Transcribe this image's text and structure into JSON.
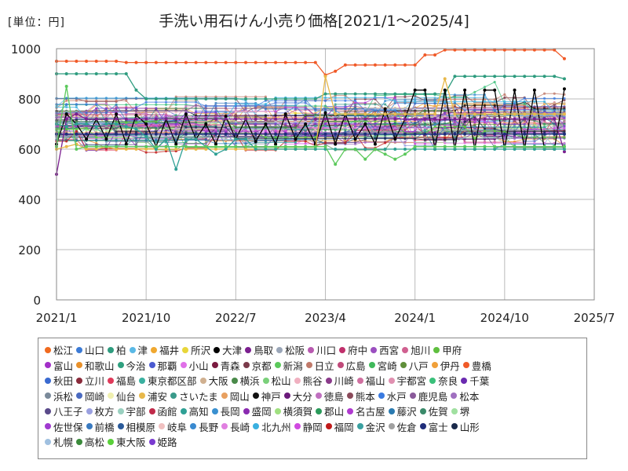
{
  "header": {
    "unit": "[単位：円]",
    "title": "手洗い用石けん小売り価格[2021/1～2025/4]"
  },
  "chart_data": {
    "type": "line",
    "title": "手洗い用石けん小売り価格[2021/1～2025/4]",
    "ylabel": "[単位：円]",
    "xlabel": "",
    "ylim": [
      0,
      1000
    ],
    "yticks": [
      0,
      200,
      400,
      600,
      800,
      1000
    ],
    "xlim_months": [
      0,
      54
    ],
    "xticks": [
      {
        "month": 0,
        "label": "2021/1"
      },
      {
        "month": 9,
        "label": "2021/10"
      },
      {
        "month": 18,
        "label": "2022/7"
      },
      {
        "month": 27,
        "label": "2023/4"
      },
      {
        "month": 36,
        "label": "2024/1"
      },
      {
        "month": 45,
        "label": "2024/10"
      },
      {
        "month": 54,
        "label": "2025/7"
      }
    ],
    "months": 52,
    "grid": true,
    "legend_position": "bottom",
    "highlight_series": [
      {
        "name": "豊橋",
        "color": "#f05a28",
        "values": [
          950,
          950,
          950,
          950,
          950,
          950,
          950,
          945,
          945,
          945,
          945,
          945,
          945,
          945,
          945,
          945,
          945,
          945,
          945,
          945,
          945,
          945,
          945,
          945,
          945,
          945,
          945,
          895,
          910,
          935,
          935,
          935,
          935,
          935,
          935,
          935,
          935,
          975,
          975,
          995,
          995,
          995,
          995,
          995,
          995,
          995,
          995,
          995,
          995,
          995,
          995,
          960
        ]
      },
      {
        "name": "柏",
        "color": "#2f9c7f",
        "values": [
          900,
          900,
          900,
          900,
          900,
          900,
          900,
          900,
          835,
          800,
          800,
          800,
          800,
          800,
          800,
          800,
          800,
          800,
          800,
          800,
          800,
          800,
          800,
          800,
          800,
          800,
          800,
          820,
          820,
          820,
          820,
          820,
          820,
          820,
          820,
          820,
          820,
          820,
          820,
          820,
          890,
          890,
          890,
          890,
          890,
          890,
          890,
          890,
          890,
          890,
          890,
          880
        ]
      },
      {
        "name": "大津",
        "color": "#000000",
        "values": [
          620,
          740,
          700,
          640,
          720,
          640,
          740,
          620,
          735,
          700,
          610,
          720,
          620,
          740,
          640,
          700,
          620,
          730,
          640,
          720,
          630,
          700,
          620,
          740,
          640,
          700,
          620,
          745,
          620,
          740,
          640,
          700,
          620,
          760,
          640,
          720,
          835,
          835,
          600,
          835,
          600,
          835,
          600,
          835,
          835,
          600,
          835,
          600,
          835,
          600,
          600,
          840
        ]
      },
      {
        "name": "富士",
        "color": "#1f2d7a",
        "values": [
          660,
          660,
          660,
          660,
          660,
          660,
          660,
          660,
          660,
          660,
          660,
          660,
          660,
          660,
          660,
          660,
          660,
          660,
          660,
          660,
          660,
          660,
          660,
          660,
          660,
          660,
          660,
          660,
          660,
          660,
          660,
          660,
          660,
          660,
          660,
          660,
          660,
          660,
          660,
          660,
          660,
          660,
          660,
          660,
          660,
          660,
          660,
          660,
          660,
          660,
          660,
          660
        ]
      },
      {
        "name": "鳥取",
        "color": "#7b1f8f",
        "values": [
          500,
          720,
          740,
          720,
          720,
          720,
          720,
          720,
          720,
          720,
          720,
          720,
          720,
          720,
          720,
          720,
          720,
          720,
          720,
          720,
          720,
          720,
          720,
          720,
          720,
          720,
          720,
          720,
          720,
          720,
          720,
          720,
          720,
          720,
          720,
          720,
          720,
          720,
          720,
          720,
          720,
          720,
          720,
          720,
          720,
          720,
          720,
          720,
          720,
          720,
          720,
          590
        ]
      },
      {
        "name": "浦安",
        "color": "#e8b84a",
        "values": [
          600,
          610,
          620,
          600,
          600,
          610,
          600,
          600,
          600,
          600,
          600,
          600,
          600,
          600,
          600,
          600,
          600,
          600,
          600,
          600,
          600,
          600,
          600,
          600,
          600,
          600,
          600,
          890,
          740,
          740,
          740,
          740,
          740,
          740,
          740,
          740,
          740,
          740,
          740,
          880,
          740,
          740,
          740,
          740,
          740,
          740,
          740,
          740,
          740,
          740,
          740,
          740
        ]
      },
      {
        "name": "高知",
        "color": "#2fa095",
        "values": [
          700,
          690,
          700,
          700,
          690,
          700,
          700,
          690,
          680,
          650,
          600,
          640,
          520,
          640,
          640,
          610,
          580,
          600,
          640,
          640,
          600,
          600,
          600,
          600,
          600,
          600,
          600,
          600,
          600,
          600,
          600,
          600,
          600,
          600,
          600,
          600,
          600,
          600,
          600,
          600,
          600,
          600,
          600,
          600,
          600,
          600,
          600,
          600,
          600,
          600,
          600,
          600
        ]
      },
      {
        "name": "新潟",
        "color": "#5cc95c",
        "values": [
          610,
          850,
          600,
          610,
          610,
          610,
          610,
          610,
          610,
          610,
          610,
          610,
          610,
          610,
          610,
          610,
          610,
          610,
          610,
          610,
          610,
          610,
          610,
          610,
          610,
          610,
          610,
          610,
          540,
          600,
          600,
          560,
          600,
          580,
          560,
          580,
          610,
          610,
          610,
          610,
          610,
          610,
          610,
          610,
          610,
          610,
          610,
          610,
          610,
          610,
          610,
          610
        ]
      }
    ],
    "legend": [
      {
        "name": "松江",
        "color": "#f06a1f"
      },
      {
        "name": "山口",
        "color": "#3c7bd6"
      },
      {
        "name": "柏",
        "color": "#2f9c7f"
      },
      {
        "name": "津",
        "color": "#5ab9e6"
      },
      {
        "name": "福井",
        "color": "#f0a830"
      },
      {
        "name": "所沢",
        "color": "#e8d63a"
      },
      {
        "name": "大津",
        "color": "#000000"
      },
      {
        "name": "鳥取",
        "color": "#7b1f8f"
      },
      {
        "name": "松阪",
        "color": "#9aa6b8"
      },
      {
        "name": "川口",
        "color": "#b85ab0"
      },
      {
        "name": "府中",
        "color": "#c0306b"
      },
      {
        "name": "西宮",
        "color": "#9b4fc0"
      },
      {
        "name": "旭川",
        "color": "#d06090"
      },
      {
        "name": "甲府",
        "color": "#5fbf3f"
      },
      {
        "name": "富山",
        "color": "#a22fc8"
      },
      {
        "name": "和歌山",
        "color": "#e8902a"
      },
      {
        "name": "今治",
        "color": "#2fa07f"
      },
      {
        "name": "那覇",
        "color": "#4a5ad0"
      },
      {
        "name": "小山",
        "color": "#e070e8"
      },
      {
        "name": "青森",
        "color": "#7a1a3f"
      },
      {
        "name": "京都",
        "color": "#7a3a4a"
      },
      {
        "name": "新潟",
        "color": "#5cc95c"
      },
      {
        "name": "日立",
        "color": "#c07a6a"
      },
      {
        "name": "広島",
        "color": "#c04a7a"
      },
      {
        "name": "宮崎",
        "color": "#3fb85a"
      },
      {
        "name": "八戸",
        "color": "#5f8f3a"
      },
      {
        "name": "伊丹",
        "color": "#f0a03a"
      },
      {
        "name": "豊橋",
        "color": "#f05a28"
      },
      {
        "name": "秋田",
        "color": "#3a6ad0"
      },
      {
        "name": "立川",
        "color": "#8a2a3a"
      },
      {
        "name": "福島",
        "color": "#e03a5a"
      },
      {
        "name": "東京都区部",
        "color": "#3ab0a0"
      },
      {
        "name": "大阪",
        "color": "#d0b090"
      },
      {
        "name": "横浜",
        "color": "#4a8a4a"
      },
      {
        "name": "松山",
        "color": "#7ad07a"
      },
      {
        "name": "熊谷",
        "color": "#f0b0c0"
      },
      {
        "name": "川崎",
        "color": "#8a3a8a"
      },
      {
        "name": "福山",
        "color": "#d070a0"
      },
      {
        "name": "宇都宮",
        "color": "#e090b0"
      },
      {
        "name": "奈良",
        "color": "#3ac07a"
      },
      {
        "name": "千葉",
        "color": "#6a2ab0"
      },
      {
        "name": "浜松",
        "color": "#7a8a9a"
      },
      {
        "name": "岡崎",
        "color": "#4a6ac0"
      },
      {
        "name": "仙台",
        "color": "#f0f0b0"
      },
      {
        "name": "浦安",
        "color": "#e8b84a"
      },
      {
        "name": "さいたま",
        "color": "#3a9a8a"
      },
      {
        "name": "岡山",
        "color": "#e8a060"
      },
      {
        "name": "神戸",
        "color": "#111111"
      },
      {
        "name": "大分",
        "color": "#6a1a7a"
      },
      {
        "name": "徳島",
        "color": "#c070c0"
      },
      {
        "name": "熊本",
        "color": "#8a4a5a"
      },
      {
        "name": "水戸",
        "color": "#3a7ae0"
      },
      {
        "name": "鹿児島",
        "color": "#8a5a9a"
      },
      {
        "name": "松本",
        "color": "#a070c0"
      },
      {
        "name": "八王子",
        "color": "#5a4a8a"
      },
      {
        "name": "枚方",
        "color": "#9aa0e0"
      },
      {
        "name": "宇部",
        "color": "#9ad0c0"
      },
      {
        "name": "函館",
        "color": "#c02a4a"
      },
      {
        "name": "高知",
        "color": "#2fa095"
      },
      {
        "name": "長岡",
        "color": "#3a90d0"
      },
      {
        "name": "盛岡",
        "color": "#8a2ab0"
      },
      {
        "name": "横須賀",
        "color": "#a0e080"
      },
      {
        "name": "郡山",
        "color": "#2a9a5a"
      },
      {
        "name": "名古屋",
        "color": "#b03ad0"
      },
      {
        "name": "藤沢",
        "color": "#2a7ab0"
      },
      {
        "name": "佐賀",
        "color": "#3a8a6a"
      },
      {
        "name": "堺",
        "color": "#a0e0a0"
      },
      {
        "name": "佐世保",
        "color": "#a03ad0"
      },
      {
        "name": "前橋",
        "color": "#3a7ac0"
      },
      {
        "name": "相模原",
        "color": "#2a5a9a"
      },
      {
        "name": "岐阜",
        "color": "#f0c0c0"
      },
      {
        "name": "長野",
        "color": "#3a8ad0"
      },
      {
        "name": "長崎",
        "color": "#e080e0"
      },
      {
        "name": "北九州",
        "color": "#3ab0e0"
      },
      {
        "name": "静岡",
        "color": "#d04ae0"
      },
      {
        "name": "福岡",
        "color": "#c01a1a"
      },
      {
        "name": "金沢",
        "color": "#3aa0a0"
      },
      {
        "name": "佐倉",
        "color": "#a0a0a0"
      },
      {
        "name": "富士",
        "color": "#1f2d7a"
      },
      {
        "name": "山形",
        "color": "#1a2a4a"
      },
      {
        "name": "札幌",
        "color": "#a0c0e0"
      },
      {
        "name": "高松",
        "color": "#3a8a3a"
      },
      {
        "name": "東大阪",
        "color": "#5ad03a"
      },
      {
        "name": "姫路",
        "color": "#7a3ad0"
      }
    ],
    "legend_rows": [
      14,
      14,
      13,
      13,
      13,
      13,
      4
    ]
  }
}
